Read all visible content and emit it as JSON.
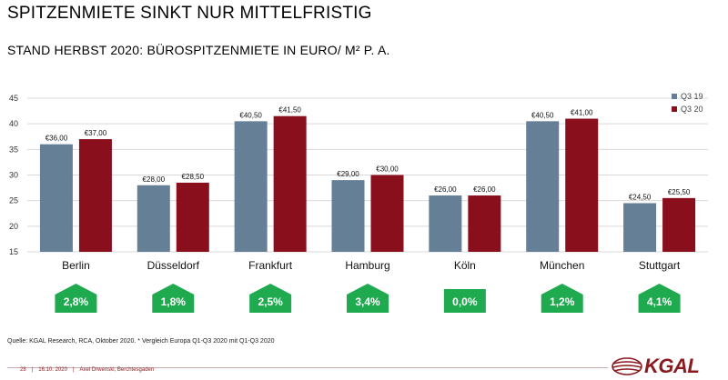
{
  "title": "SPITZENMIETE SINKT NUR MITTELFRISTIG",
  "subtitle": "STAND HERBST 2020: BÜROSPITZENMIETE IN EURO/ M² P. A.",
  "colors": {
    "q319": "#647f96",
    "q320": "#8a0f1d",
    "badge": "#1faa4f",
    "grid": "#d9d9d9"
  },
  "chart_data": {
    "type": "bar",
    "categories": [
      "Berlin",
      "Düsseldorf",
      "Frankfurt",
      "Hamburg",
      "Köln",
      "München",
      "Stuttgart"
    ],
    "series": [
      {
        "name": "Q3 19",
        "values": [
          36.0,
          28.0,
          40.5,
          29.0,
          26.0,
          40.5,
          24.5
        ],
        "labels": [
          "€36,00",
          "€28,00",
          "€40,50",
          "€29,00",
          "€26,00",
          "€40,50",
          "€24,50"
        ]
      },
      {
        "name": "Q3 20",
        "values": [
          37.0,
          28.5,
          41.5,
          30.0,
          26.0,
          41.0,
          25.5
        ],
        "labels": [
          "€37,00",
          "€28,50",
          "€41,50",
          "€30,00",
          "€26,00",
          "€41,00",
          "€25,50"
        ]
      }
    ],
    "ylim": [
      15,
      45
    ],
    "yticks": [
      15,
      20,
      25,
      30,
      35,
      40,
      45
    ],
    "changes": [
      {
        "label": "2,8%",
        "direction": "up"
      },
      {
        "label": "1,8%",
        "direction": "up"
      },
      {
        "label": "2,5%",
        "direction": "up"
      },
      {
        "label": "3,4%",
        "direction": "up"
      },
      {
        "label": "0,0%",
        "direction": "flat"
      },
      {
        "label": "1,2%",
        "direction": "up"
      },
      {
        "label": "4,1%",
        "direction": "up"
      }
    ],
    "legend_position": "top-right"
  },
  "source": "Quelle: KGAL Research, RCA, Oktober 2020. * Vergleich Europa Q1-Q3 2020 mit Q1-Q3 2020",
  "footer": {
    "page": "28",
    "date": "16.10. 2020",
    "author": "Axel Drwenski, Berchtesgaden"
  },
  "logo": {
    "text": "KGAL"
  }
}
